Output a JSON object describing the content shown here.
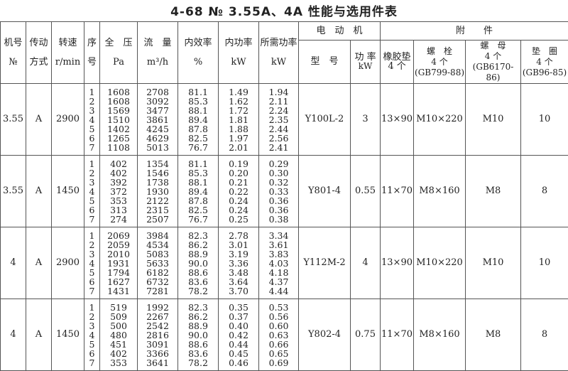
{
  "title": "4-68 № 3.55A、4A 性能与选用件表",
  "headers": {
    "machine_no": [
      "机号",
      "№"
    ],
    "drive": [
      "传动",
      "方式"
    ],
    "speed": [
      "转速",
      "r/min"
    ],
    "seq": [
      "序",
      "号"
    ],
    "pressure": [
      "全　压",
      "Pa"
    ],
    "flow": [
      "流　量",
      "m³/h"
    ],
    "efficiency": [
      "内效率",
      "%"
    ],
    "internal_power": [
      "内功率",
      "kW"
    ],
    "required_power": [
      "所需功率",
      "kW"
    ],
    "motor": "电　动　机",
    "motor_model": "型　号",
    "motor_power": [
      "功 率",
      "kW"
    ],
    "accessories": "附　　件",
    "rubber_pad": [
      "橡胶垫",
      "4 个"
    ],
    "bolt": [
      "螺　栓",
      "4 个",
      "(GB799-88)"
    ],
    "nut": [
      "螺　母",
      "4 个",
      "(GB6170-86)"
    ],
    "washer": [
      "垫　圈",
      "4 个",
      "(GB96-85)"
    ]
  },
  "groups": [
    {
      "machine_no": "3.55",
      "drive": "A",
      "speed": "2900",
      "seq": [
        "1",
        "2",
        "3",
        "4",
        "5",
        "6",
        "7"
      ],
      "pressure": [
        "1608",
        "1608",
        "1569",
        "1510",
        "1402",
        "1265",
        "1108"
      ],
      "flow": [
        "2708",
        "3092",
        "3477",
        "3861",
        "4245",
        "4629",
        "5013"
      ],
      "efficiency": [
        "81.1",
        "85.3",
        "88.1",
        "89.4",
        "87.8",
        "82.5",
        "76.7"
      ],
      "internal_power": [
        "1.49",
        "1.62",
        "1.72",
        "1.81",
        "1.88",
        "1.97",
        "2.01"
      ],
      "required_power": [
        "1.94",
        "2.11",
        "2.24",
        "2.35",
        "2.44",
        "2.56",
        "2.41"
      ],
      "motor_model": "Y100L-2",
      "motor_power": "3",
      "rubber_pad": "13×90",
      "bolt": "M10×220",
      "nut": "M10",
      "washer": "10"
    },
    {
      "machine_no": "3.55",
      "drive": "A",
      "speed": "1450",
      "seq": [
        "1",
        "2",
        "3",
        "4",
        "5",
        "6",
        "7"
      ],
      "pressure": [
        "402",
        "402",
        "392",
        "372",
        "353",
        "313",
        "274"
      ],
      "flow": [
        "1354",
        "1546",
        "1738",
        "1930",
        "2122",
        "2315",
        "2507"
      ],
      "efficiency": [
        "81.1",
        "85.3",
        "88.1",
        "89.4",
        "87.8",
        "82.5",
        "76.7"
      ],
      "internal_power": [
        "0.19",
        "0.20",
        "0.21",
        "0.22",
        "0.24",
        "0.24",
        "0.25"
      ],
      "required_power": [
        "0.29",
        "0.30",
        "0.32",
        "0.33",
        "0.36",
        "0.36",
        "0.38"
      ],
      "motor_model": "Y801-4",
      "motor_power": "0.55",
      "rubber_pad": "11×70",
      "bolt": "M8×160",
      "nut": "M8",
      "washer": "8"
    },
    {
      "machine_no": "4",
      "drive": "A",
      "speed": "2900",
      "seq": [
        "1",
        "2",
        "3",
        "4",
        "5",
        "6",
        "7"
      ],
      "pressure": [
        "2069",
        "2059",
        "2010",
        "1931",
        "1794",
        "1627",
        "1431"
      ],
      "flow": [
        "3984",
        "4534",
        "5083",
        "5633",
        "6182",
        "6732",
        "7281"
      ],
      "efficiency": [
        "82.3",
        "86.2",
        "88.9",
        "90.0",
        "88.6",
        "83.6",
        "78.2"
      ],
      "internal_power": [
        "2.78",
        "3.01",
        "3.19",
        "3.36",
        "3.48",
        "3.64",
        "3.70"
      ],
      "required_power": [
        "3.34",
        "3.61",
        "3.83",
        "4.03",
        "4.18",
        "4.37",
        "4.44"
      ],
      "motor_model": "Y112M-2",
      "motor_power": "4",
      "rubber_pad": "13×90",
      "bolt": "M10×220",
      "nut": "M10",
      "washer": "10"
    },
    {
      "machine_no": "4",
      "drive": "A",
      "speed": "1450",
      "seq": [
        "1",
        "2",
        "3",
        "4",
        "5",
        "6",
        "7"
      ],
      "pressure": [
        "519",
        "509",
        "500",
        "480",
        "451",
        "402",
        "353"
      ],
      "flow": [
        "1992",
        "2267",
        "2542",
        "2816",
        "3091",
        "3366",
        "3641"
      ],
      "efficiency": [
        "82.3",
        "86.2",
        "88.9",
        "90.0",
        "88.6",
        "83.6",
        "78.2"
      ],
      "internal_power": [
        "0.35",
        "0.37",
        "0.40",
        "0.42",
        "0.44",
        "0.45",
        "0.46"
      ],
      "required_power": [
        "0.53",
        "0.56",
        "0.60",
        "0.63",
        "0.66",
        "0.65",
        "0.69"
      ],
      "motor_model": "Y802-4",
      "motor_power": "0.75",
      "rubber_pad": "11×70",
      "bolt": "M8×160",
      "nut": "M8",
      "washer": "8"
    }
  ]
}
